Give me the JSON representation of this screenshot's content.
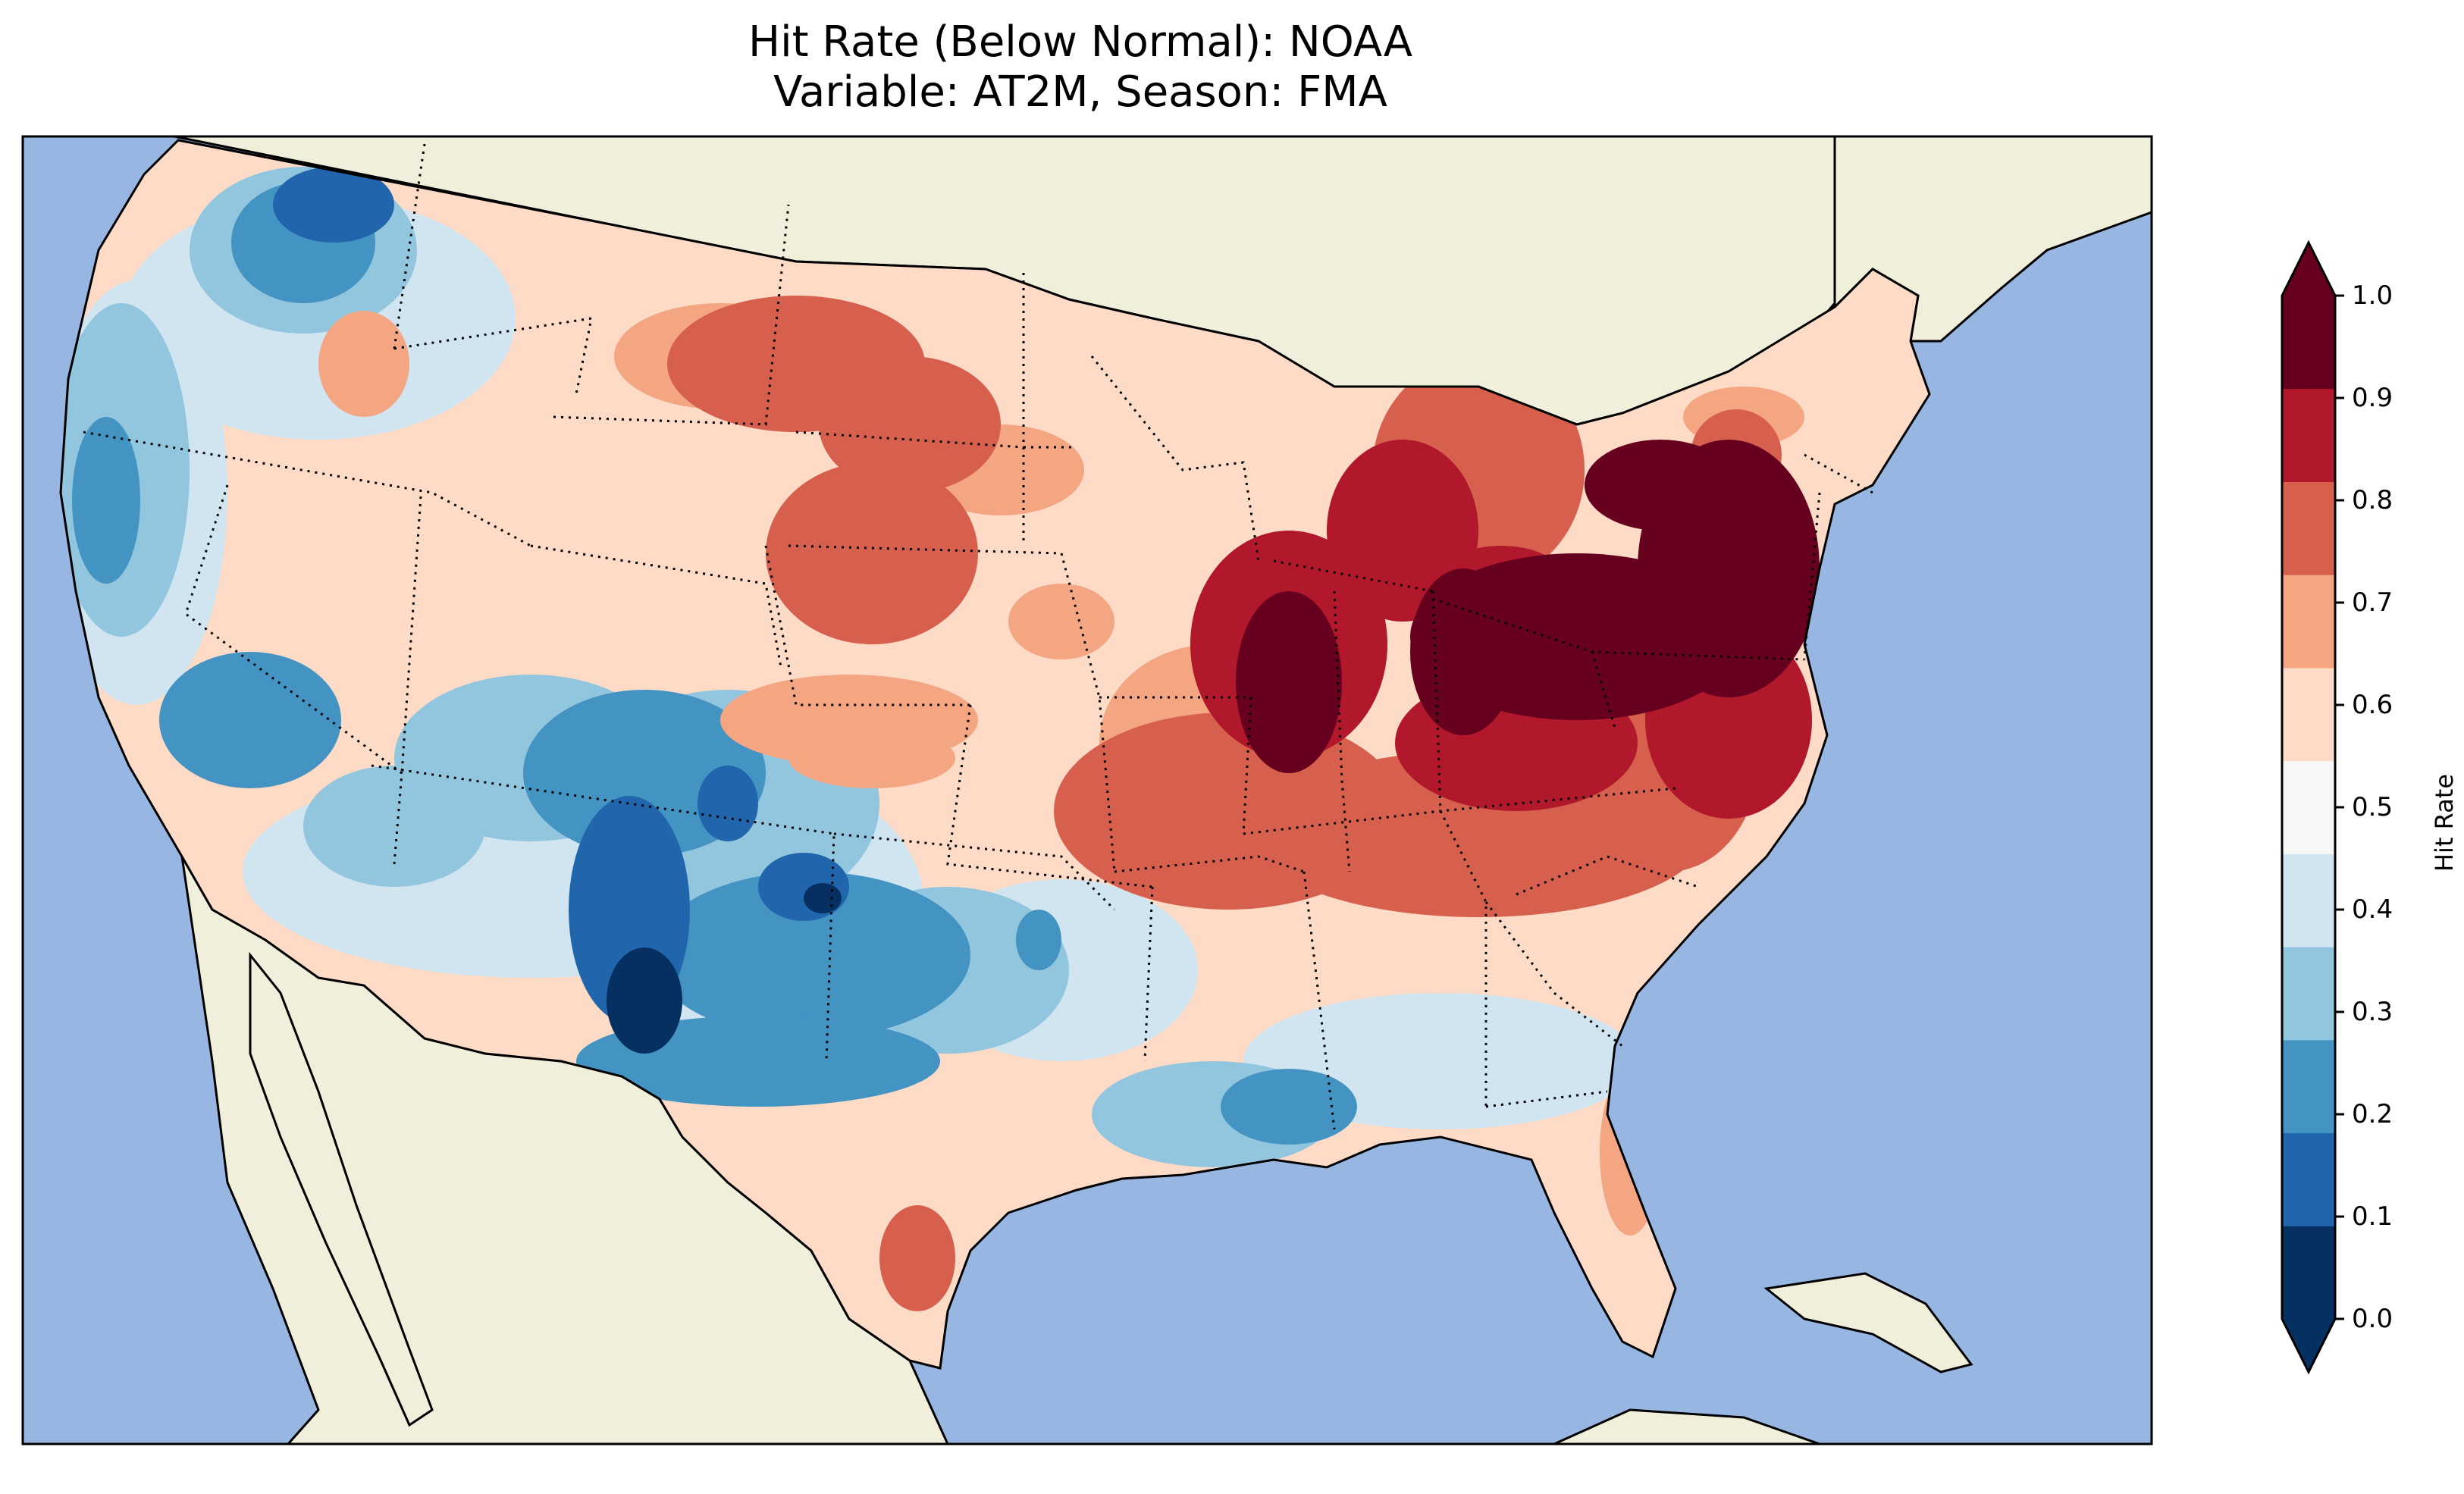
{
  "title": {
    "line1": "Hit Rate (Below Normal): NOAA",
    "line2": "Variable: AT2M, Season: FMA"
  },
  "colorbar": {
    "label": "Hit Rate",
    "ticks": [
      "0.0",
      "0.1",
      "0.2",
      "0.3",
      "0.4",
      "0.5",
      "0.6",
      "0.7",
      "0.8",
      "0.9",
      "1.0"
    ],
    "colors": [
      "#053061",
      "#2166ac",
      "#4393c3",
      "#92c5de",
      "#d1e5f0",
      "#f7f7f7",
      "#fddbc7",
      "#f4a582",
      "#d6604d",
      "#b2182b",
      "#67001f"
    ]
  },
  "map": {
    "ocean_color": "#97b6e1",
    "land_color": "#efefdb",
    "region": "Contiguous United States"
  }
}
